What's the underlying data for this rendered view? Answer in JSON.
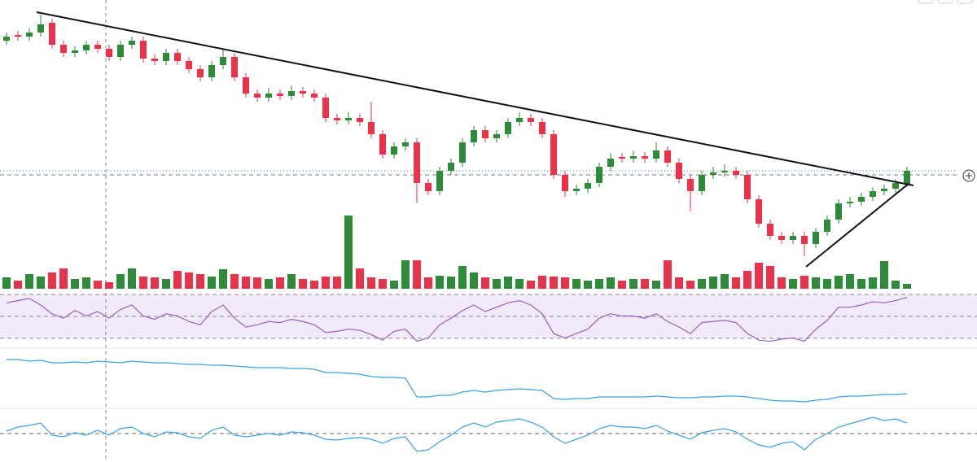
{
  "chart_data": [
    {
      "type": "candlestick",
      "up_color": "#2e8b3a",
      "down_color": "#e8334a",
      "ylim": [
        50,
        400
      ],
      "open": [
        350,
        357,
        355,
        360,
        372,
        345,
        335,
        338,
        345,
        340,
        330,
        345,
        350,
        328,
        325,
        335,
        325,
        315,
        305,
        320,
        330,
        305,
        285,
        280,
        285,
        282,
        288,
        285,
        280,
        255,
        252,
        255,
        250,
        235,
        210,
        220,
        225,
        175,
        165,
        190,
        200,
        225,
        240,
        230,
        235,
        250,
        255,
        250,
        235,
        185,
        165,
        168,
        175,
        195,
        207,
        205,
        208,
        205,
        215,
        200,
        180,
        165,
        185,
        188,
        190,
        185,
        155,
        125,
        110,
        105,
        110,
        100,
        115,
        130,
        150,
        152,
        158,
        165,
        168,
        175
      ],
      "high": [
        360,
        362,
        365,
        382,
        377,
        350,
        343,
        350,
        350,
        345,
        350,
        355,
        355,
        333,
        340,
        340,
        330,
        320,
        325,
        340,
        335,
        310,
        290,
        292,
        290,
        295,
        293,
        290,
        285,
        260,
        262,
        260,
        275,
        240,
        225,
        230,
        230,
        180,
        195,
        205,
        230,
        245,
        245,
        240,
        255,
        262,
        260,
        255,
        240,
        190,
        173,
        180,
        200,
        212,
        212,
        215,
        213,
        225,
        220,
        205,
        185,
        190,
        195,
        198,
        195,
        190,
        160,
        130,
        115,
        115,
        115,
        120,
        135,
        155,
        158,
        163,
        170,
        173,
        180,
        195
      ],
      "low": [
        345,
        350,
        350,
        355,
        340,
        330,
        330,
        333,
        335,
        325,
        325,
        340,
        323,
        320,
        320,
        320,
        310,
        300,
        300,
        315,
        300,
        280,
        275,
        275,
        277,
        277,
        280,
        275,
        250,
        247,
        247,
        245,
        230,
        205,
        205,
        215,
        150,
        160,
        160,
        185,
        195,
        220,
        225,
        225,
        230,
        245,
        245,
        230,
        180,
        158,
        160,
        163,
        170,
        190,
        200,
        200,
        200,
        200,
        195,
        175,
        140,
        160,
        180,
        183,
        180,
        150,
        120,
        105,
        100,
        100,
        85,
        95,
        110,
        125,
        145,
        147,
        153,
        160,
        163,
        170
      ],
      "close": [
        355,
        355,
        360,
        370,
        345,
        335,
        338,
        345,
        340,
        330,
        345,
        350,
        328,
        325,
        335,
        325,
        315,
        305,
        320,
        330,
        305,
        285,
        280,
        285,
        282,
        288,
        285,
        280,
        255,
        252,
        255,
        250,
        235,
        210,
        220,
        225,
        175,
        165,
        190,
        200,
        225,
        240,
        230,
        235,
        250,
        255,
        250,
        235,
        185,
        165,
        168,
        175,
        195,
        205,
        205,
        208,
        205,
        215,
        200,
        180,
        165,
        185,
        188,
        190,
        185,
        155,
        125,
        110,
        105,
        110,
        100,
        115,
        130,
        150,
        152,
        158,
        165,
        168,
        175,
        190
      ],
      "volume": [
        14,
        10,
        18,
        15,
        20,
        25,
        12,
        14,
        10,
        8,
        18,
        25,
        15,
        14,
        12,
        22,
        20,
        18,
        15,
        24,
        18,
        15,
        14,
        12,
        14,
        18,
        12,
        10,
        15,
        15,
        90,
        25,
        14,
        12,
        10,
        35,
        35,
        14,
        16,
        15,
        28,
        20,
        14,
        12,
        15,
        12,
        10,
        16,
        15,
        14,
        12,
        10,
        12,
        14,
        10,
        12,
        12,
        10,
        35,
        14,
        10,
        12,
        15,
        18,
        14,
        22,
        32,
        28,
        14,
        12,
        16,
        14,
        12,
        16,
        18,
        12,
        14,
        34,
        10,
        6
      ],
      "volume_lim": [
        0,
        100
      ]
    },
    {
      "type": "line",
      "color": "#9c5fbf",
      "ylim": [
        20,
        80
      ],
      "values": [
        62,
        64,
        66,
        60,
        52,
        48,
        55,
        50,
        54,
        48,
        56,
        60,
        50,
        47,
        52,
        50,
        45,
        42,
        54,
        60,
        48,
        40,
        42,
        45,
        44,
        47,
        45,
        42,
        35,
        36,
        38,
        37,
        33,
        28,
        36,
        38,
        27,
        30,
        42,
        48,
        55,
        60,
        54,
        58,
        62,
        64,
        60,
        52,
        34,
        30,
        34,
        38,
        48,
        52,
        50,
        50,
        48,
        52,
        45,
        40,
        34,
        44,
        45,
        46,
        44,
        34,
        28,
        27,
        29,
        30,
        27,
        38,
        46,
        58,
        58,
        60,
        63,
        62,
        64,
        67
      ]
    },
    {
      "type": "line",
      "color": "#3ba0e6",
      "ylim": [
        0,
        70
      ],
      "values": [
        58,
        58,
        56,
        57,
        54,
        54,
        55,
        54,
        56,
        55,
        54,
        56,
        55,
        54,
        54,
        53,
        52,
        52,
        51,
        51,
        50,
        49,
        48,
        48,
        48,
        47,
        47,
        46,
        42,
        42,
        41,
        40,
        37,
        36,
        36,
        35,
        12,
        12,
        14,
        14,
        18,
        20,
        18,
        20,
        21,
        22,
        21,
        20,
        10,
        9,
        10,
        10,
        12,
        12,
        12,
        12,
        12,
        13,
        12,
        11,
        11,
        12,
        12,
        13,
        13,
        12,
        10,
        8,
        7,
        7,
        6,
        8,
        9,
        12,
        13,
        13,
        14,
        15,
        15,
        16
      ]
    },
    {
      "type": "line",
      "color": "#3ba0e6",
      "ylim": [
        0,
        60
      ],
      "values": [
        35,
        40,
        42,
        45,
        30,
        28,
        33,
        30,
        36,
        30,
        38,
        40,
        32,
        28,
        34,
        33,
        28,
        26,
        36,
        40,
        30,
        28,
        30,
        32,
        30,
        34,
        33,
        30,
        25,
        24,
        26,
        27,
        25,
        20,
        26,
        28,
        10,
        12,
        22,
        30,
        40,
        45,
        40,
        46,
        48,
        50,
        46,
        40,
        28,
        20,
        25,
        30,
        38,
        42,
        40,
        40,
        38,
        42,
        35,
        30,
        25,
        33,
        36,
        38,
        34,
        25,
        18,
        15,
        20,
        22,
        12,
        25,
        32,
        40,
        44,
        48,
        52,
        48,
        50,
        45
      ]
    }
  ]
}
